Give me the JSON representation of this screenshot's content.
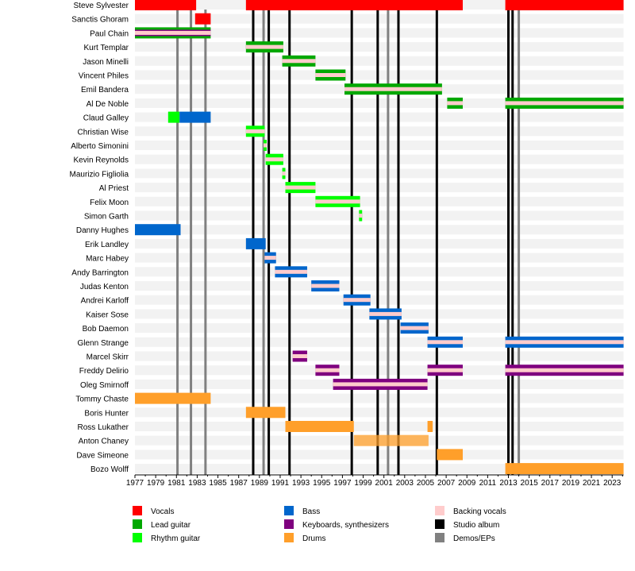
{
  "chart_data": {
    "type": "timeline",
    "xlim": [
      1977,
      2024.1
    ],
    "ticks": [
      1977,
      1979,
      1981,
      1983,
      1985,
      1987,
      1989,
      1991,
      1993,
      1995,
      1997,
      1999,
      2001,
      2003,
      2005,
      2007,
      2009,
      2011,
      2013,
      2015,
      2017,
      2019,
      2021,
      2023
    ],
    "colors": {
      "Vocals": "#FF0000",
      "Lead guitar": "#00A800",
      "Rhythm guitar": "#00FF00",
      "Bass": "#0066CC",
      "Keyboards, synthesizers": "#7F007F",
      "Drums": "#FF9F2A",
      "Backing vocals": "#FFCCCC",
      "Studio album": "#000000",
      "Demos/EPs": "#808080"
    },
    "legend": [
      [
        "Vocals",
        "Lead guitar",
        "Rhythm guitar"
      ],
      [
        "Bass",
        "Keyboards, synthesizers",
        "Drums"
      ],
      [
        "Backing vocals",
        "Studio album",
        "Demos/EPs"
      ]
    ],
    "studio_albums": [
      1988.4,
      1989.9,
      1991.9,
      1997.9,
      2000.4,
      2002.4,
      2006.1,
      2013.0,
      2013.4
    ],
    "demos_eps": [
      1981.1,
      1982.4,
      1983.8,
      1989.4,
      2001.4,
      2014.0
    ],
    "members": [
      {
        "name": "Steve Sylvester",
        "periods": [
          {
            "role": "Vocals",
            "start": 1977,
            "end": 1982.9
          },
          {
            "role": "Vocals",
            "start": 1987.7,
            "end": 2008.6
          },
          {
            "role": "Vocals",
            "start": 2012.7,
            "end": 2024.1
          }
        ]
      },
      {
        "name": "Sanctis Ghoram",
        "periods": [
          {
            "role": "Vocals",
            "start": 1982.8,
            "end": 1984.3
          }
        ]
      },
      {
        "name": "Paul Chain",
        "periods": [
          {
            "role": "Lead guitar",
            "start": 1977,
            "end": 1984.3,
            "keys": true,
            "bv": true
          }
        ]
      },
      {
        "name": "Kurt Templar",
        "periods": [
          {
            "role": "Lead guitar",
            "start": 1987.7,
            "end": 1991.3,
            "bv": true
          }
        ]
      },
      {
        "name": "Jason Minelli",
        "periods": [
          {
            "role": "Lead guitar",
            "start": 1991.2,
            "end": 1994.4,
            "bv": true
          }
        ]
      },
      {
        "name": "Vincent Philes",
        "periods": [
          {
            "role": "Lead guitar",
            "start": 1994.4,
            "end": 1997.3,
            "bv": true
          }
        ]
      },
      {
        "name": "Emil Bandera",
        "periods": [
          {
            "role": "Lead guitar",
            "start": 1997.2,
            "end": 2006.6,
            "bv": true
          }
        ]
      },
      {
        "name": "Al De Noble",
        "periods": [
          {
            "role": "Lead guitar",
            "start": 2007.1,
            "end": 2008.6,
            "bv": true
          },
          {
            "role": "Lead guitar",
            "start": 2012.7,
            "end": 2024.1,
            "bv": true
          }
        ]
      },
      {
        "name": "Claud Galley",
        "periods": [
          {
            "role": "Rhythm guitar",
            "start": 1980.2,
            "end": 1981.3
          },
          {
            "role": "Bass",
            "start": 1981.3,
            "end": 1984.3
          }
        ]
      },
      {
        "name": "Christian Wise",
        "periods": [
          {
            "role": "Rhythm guitar",
            "start": 1987.7,
            "end": 1989.5,
            "bv": true
          }
        ]
      },
      {
        "name": "Alberto Simonini",
        "periods": [
          {
            "role": "Rhythm guitar",
            "start": 1989.4,
            "end": 1989.7,
            "bv": true
          }
        ]
      },
      {
        "name": "Kevin Reynolds",
        "periods": [
          {
            "role": "Rhythm guitar",
            "start": 1989.6,
            "end": 1991.3,
            "bv": true
          }
        ]
      },
      {
        "name": "Maurizio Figliolia",
        "periods": [
          {
            "role": "Rhythm guitar",
            "start": 1991.2,
            "end": 1991.5,
            "bv": true
          }
        ]
      },
      {
        "name": "Al Priest",
        "periods": [
          {
            "role": "Rhythm guitar",
            "start": 1991.5,
            "end": 1994.4,
            "bv": true
          }
        ]
      },
      {
        "name": "Felix Moon",
        "periods": [
          {
            "role": "Rhythm guitar",
            "start": 1994.4,
            "end": 1998.7,
            "bv": true
          }
        ]
      },
      {
        "name": "Simon Garth",
        "periods": [
          {
            "role": "Rhythm guitar",
            "start": 1998.6,
            "end": 1998.9,
            "bv": true
          }
        ]
      },
      {
        "name": "Danny Hughes",
        "periods": [
          {
            "role": "Bass",
            "start": 1977,
            "end": 1981.4
          }
        ]
      },
      {
        "name": "Erik Landley",
        "periods": [
          {
            "role": "Bass",
            "start": 1987.7,
            "end": 1989.6
          }
        ]
      },
      {
        "name": "Marc Habey",
        "periods": [
          {
            "role": "Bass",
            "start": 1989.5,
            "end": 1990.6,
            "bv": true
          }
        ]
      },
      {
        "name": "Andy Barrington",
        "periods": [
          {
            "role": "Bass",
            "start": 1990.5,
            "end": 1993.6,
            "bv": true
          }
        ]
      },
      {
        "name": "Judas Kenton",
        "periods": [
          {
            "role": "Bass",
            "start": 1994.0,
            "end": 1996.7,
            "bv": true
          }
        ]
      },
      {
        "name": "Andrei Karloff",
        "periods": [
          {
            "role": "Bass",
            "start": 1997.1,
            "end": 1999.7,
            "bv": true
          }
        ]
      },
      {
        "name": "Kaiser Sose",
        "periods": [
          {
            "role": "Bass",
            "start": 1999.6,
            "end": 2002.7,
            "bv": true
          }
        ]
      },
      {
        "name": "Bob Daemon",
        "periods": [
          {
            "role": "Bass",
            "start": 2002.6,
            "end": 2005.3,
            "bv": true
          }
        ]
      },
      {
        "name": "Glenn Strange",
        "periods": [
          {
            "role": "Bass",
            "start": 2005.2,
            "end": 2008.6,
            "bv": true
          },
          {
            "role": "Bass",
            "start": 2012.7,
            "end": 2024.1,
            "bv": true
          }
        ]
      },
      {
        "name": "Marcel Skirr",
        "periods": [
          {
            "role": "Keyboards, synthesizers",
            "start": 1992.2,
            "end": 1993.6,
            "bv": true
          }
        ]
      },
      {
        "name": "Freddy Delirio",
        "periods": [
          {
            "role": "Keyboards, synthesizers",
            "start": 1994.4,
            "end": 1996.7,
            "bv": true
          },
          {
            "role": "Keyboards, synthesizers",
            "start": 2005.2,
            "end": 2008.6,
            "bv": true
          },
          {
            "role": "Keyboards, synthesizers",
            "start": 2012.7,
            "end": 2024.1,
            "bv": true
          }
        ]
      },
      {
        "name": "Oleg Smirnoff",
        "periods": [
          {
            "role": "Keyboards, synthesizers",
            "start": 1996.1,
            "end": 2005.2,
            "bv": true
          }
        ]
      },
      {
        "name": "Tommy Chaste",
        "periods": [
          {
            "role": "Drums",
            "start": 1977,
            "end": 1984.3
          }
        ]
      },
      {
        "name": "Boris Hunter",
        "periods": [
          {
            "role": "Drums",
            "start": 1987.7,
            "end": 1991.5
          }
        ]
      },
      {
        "name": "Ross Lukather",
        "periods": [
          {
            "role": "Drums",
            "start": 1991.5,
            "end": 1998.1
          },
          {
            "role": "Drums",
            "start": 2005.2,
            "end": 2005.7
          }
        ]
      },
      {
        "name": "Anton Chaney",
        "periods": [
          {
            "role": "Drums",
            "start": 1998.1,
            "end": 2005.3,
            "faded": true
          }
        ]
      },
      {
        "name": "Dave Simeone",
        "periods": [
          {
            "role": "Drums",
            "start": 2006.1,
            "end": 2008.6
          }
        ]
      },
      {
        "name": "Bozo Wolff",
        "periods": [
          {
            "role": "Drums",
            "start": 2012.7,
            "end": 2024.1
          }
        ]
      }
    ]
  }
}
